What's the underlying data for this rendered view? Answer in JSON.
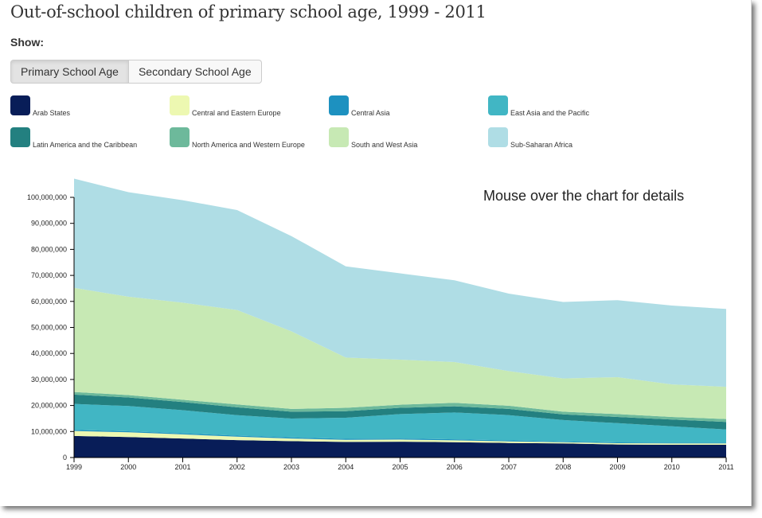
{
  "page": {
    "title": "Out-of-school children of primary school age, 1999 - 2011",
    "show_label": "Show:",
    "toggle_buttons": [
      {
        "label": "Primary School Age",
        "active": true
      },
      {
        "label": "Secondary School Age",
        "active": false
      }
    ],
    "hint": "Mouse over the chart for details"
  },
  "chart_data": {
    "type": "area",
    "stacked": true,
    "title": "Out-of-school children of primary school age, 1999 - 2011",
    "xlabel": "",
    "ylabel": "",
    "x": [
      1999,
      2000,
      2001,
      2002,
      2003,
      2004,
      2005,
      2006,
      2007,
      2008,
      2009,
      2010,
      2011
    ],
    "x_tick_labels": [
      "1999",
      "2000",
      "2001",
      "2002",
      "2003",
      "2004",
      "2005",
      "2006",
      "2007",
      "2008",
      "2009",
      "2010",
      "2011"
    ],
    "ylim": [
      0,
      100000000
    ],
    "y_ticks": [
      0,
      10000000,
      20000000,
      30000000,
      40000000,
      50000000,
      60000000,
      70000000,
      80000000,
      90000000,
      100000000
    ],
    "y_tick_labels": [
      "0",
      "10,000,000",
      "20,000,000",
      "30,000,000",
      "40,000,000",
      "50,000,000",
      "60,000,000",
      "70,000,000",
      "80,000,000",
      "90,000,000",
      "100,000,000"
    ],
    "grid": false,
    "legend_position": "top",
    "series": [
      {
        "name": "Arab States",
        "color": "#081d58",
        "values": [
          8300000,
          7900000,
          7300000,
          6700000,
          6300000,
          6000000,
          6100000,
          5900000,
          5600000,
          5400000,
          5000000,
          4900000,
          4900000
        ]
      },
      {
        "name": "Central and Eastern Europe",
        "color": "#edf8b1",
        "values": [
          1900000,
          1800000,
          1600000,
          1300000,
          1000000,
          800000,
          800000,
          700000,
          600000,
          500000,
          500000,
          500000,
          500000
        ]
      },
      {
        "name": "Central Asia",
        "color": "#1d91c0",
        "values": [
          400000,
          400000,
          400000,
          400000,
          400000,
          400000,
          400000,
          400000,
          400000,
          300000,
          300000,
          300000,
          300000
        ]
      },
      {
        "name": "East Asia and the Pacific",
        "color": "#41b6c4",
        "values": [
          10000000,
          9700000,
          8900000,
          7900000,
          7300000,
          8100000,
          9400000,
          10300000,
          9700000,
          8200000,
          7400000,
          6300000,
          5100000
        ]
      },
      {
        "name": "Latin America and the Caribbean",
        "color": "#238080",
        "values": [
          3600000,
          3300000,
          3100000,
          3000000,
          2600000,
          2500000,
          2400000,
          2400000,
          2400000,
          2200000,
          2400000,
          2600000,
          2900000
        ]
      },
      {
        "name": "North America and Western Europe",
        "color": "#6db99b",
        "values": [
          1000000,
          900000,
          900000,
          1100000,
          1100000,
          1300000,
          1200000,
          1300000,
          1200000,
          1000000,
          1100000,
          1000000,
          1100000
        ]
      },
      {
        "name": "South and West Asia",
        "color": "#c7e9b4",
        "values": [
          40000000,
          37800000,
          37300000,
          36300000,
          29800000,
          19300000,
          17300000,
          15700000,
          13300000,
          12800000,
          14200000,
          12500000,
          12400000
        ]
      },
      {
        "name": "Sub-Saharan Africa",
        "color": "#afdde5",
        "values": [
          42000000,
          40200000,
          39400000,
          38400000,
          36600000,
          35100000,
          33200000,
          31400000,
          29800000,
          29400000,
          29600000,
          30300000,
          29900000
        ]
      }
    ]
  }
}
